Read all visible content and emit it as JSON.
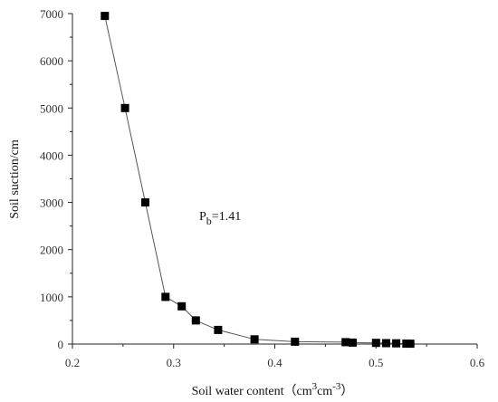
{
  "chart_data": {
    "type": "line",
    "xlabel": "Soil water content（cm",
    "xlabel_sup1": "3",
    "xlabel_mid": "cm",
    "xlabel_sup2": "-3",
    "xlabel_end": "）",
    "ylabel": "Soil suction/cm",
    "xlim": [
      0.2,
      0.6
    ],
    "ylim": [
      0,
      7000
    ],
    "xticks": [
      "0.2",
      "0.3",
      "0.4",
      "0.5",
      "0.6"
    ],
    "yticks": [
      "0",
      "1000",
      "2000",
      "3000",
      "4000",
      "5000",
      "6000",
      "7000"
    ],
    "grid": false,
    "annotation": {
      "main": "P",
      "sub": "b",
      "rest": "=1.41"
    },
    "series": [
      {
        "marker": "square",
        "color": "#000000",
        "line_color": "#555555",
        "x": [
          0.232,
          0.252,
          0.272,
          0.292,
          0.308,
          0.322,
          0.344,
          0.38,
          0.42,
          0.47,
          0.477,
          0.5,
          0.51,
          0.52,
          0.53,
          0.534
        ],
        "y": [
          6950,
          5000,
          3000,
          1000,
          800,
          500,
          300,
          100,
          50,
          40,
          30,
          25,
          20,
          15,
          10,
          8
        ]
      }
    ]
  }
}
